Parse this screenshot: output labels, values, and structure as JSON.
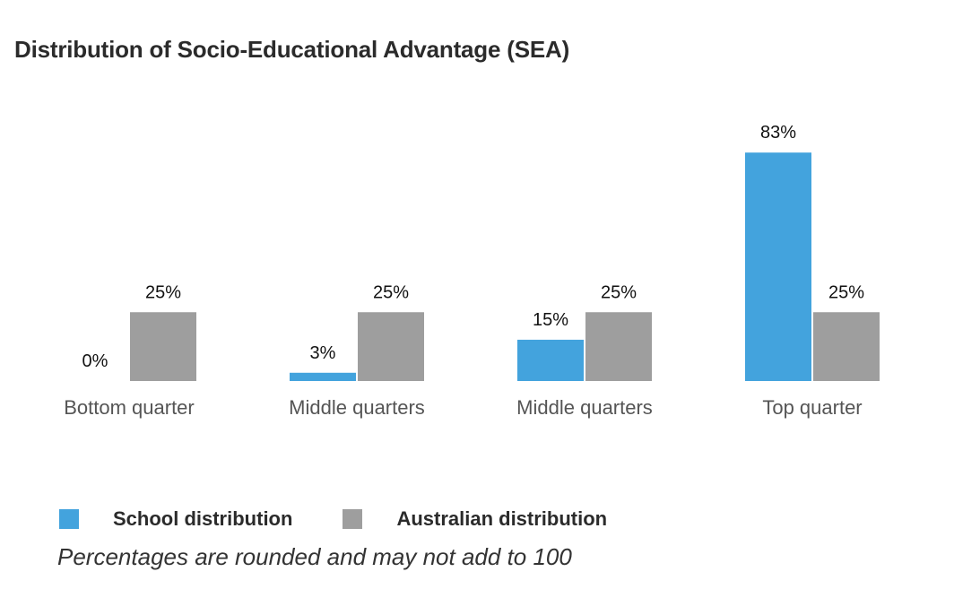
{
  "title": "Distribution of Socio-Educational Advantage (SEA)",
  "colors": {
    "school": "#43a3dd",
    "australian": "#9e9e9e"
  },
  "chart_data": {
    "type": "bar",
    "categories": [
      "Bottom quarter",
      "Middle quarters",
      "Middle quarters",
      "Top quarter"
    ],
    "series": [
      {
        "name": "School distribution",
        "values": [
          0,
          3,
          15,
          83
        ],
        "labels": [
          "0%",
          "3%",
          "15%",
          "83%"
        ]
      },
      {
        "name": "Australian distribution",
        "values": [
          25,
          25,
          25,
          25
        ],
        "labels": [
          "25%",
          "25%",
          "25%",
          "25%"
        ]
      }
    ],
    "ylim": [
      0,
      100
    ],
    "grid": false,
    "legend_placement": "bottom-left"
  },
  "legend": {
    "school_label": "School distribution",
    "australian_label": "Australian distribution"
  },
  "note": "Percentages are rounded and may not add to 100"
}
